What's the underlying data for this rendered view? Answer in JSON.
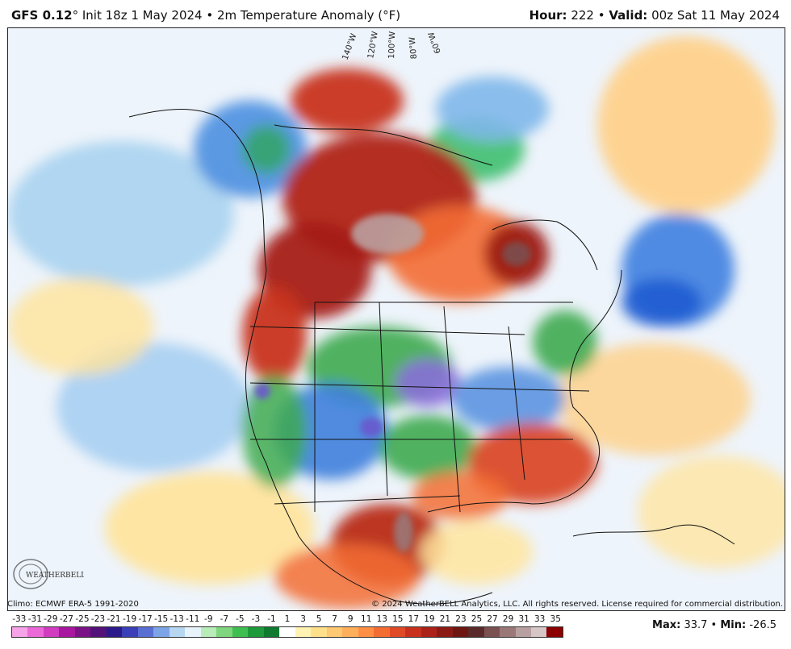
{
  "header": {
    "model": "GFS 0.12",
    "init": "° Init 18z 1 May 2024",
    "separator": " • ",
    "product": "2m Temperature Anomaly (°F)",
    "hour_label": "Hour:",
    "hour_value": "222",
    "valid_label": "Valid:",
    "valid_value": "00z Sat 11 May 2024"
  },
  "map": {
    "longitude_labels": [
      "140°W",
      "120°W",
      "100°W",
      "80°W",
      "60°W"
    ]
  },
  "footer": {
    "climo": "Climo: ECMWF ERA-5 1991-2020",
    "copyright": "© 2024 WeatherBELL Analytics, LLC. All rights reserved. License required for commercial distribution.",
    "max_label": "Max:",
    "max_value": "33.7",
    "min_label": "Min:",
    "min_value": "-26.5",
    "logo_text": "WEATHERBELL"
  },
  "legend": {
    "ticks": [
      "-33",
      "-31",
      "-29",
      "-27",
      "-25",
      "-23",
      "-21",
      "-19",
      "-17",
      "-15",
      "-13",
      "-11",
      "-9",
      "-7",
      "-5",
      "-3",
      "-1",
      "1",
      "3",
      "5",
      "7",
      "9",
      "11",
      "13",
      "15",
      "17",
      "19",
      "21",
      "23",
      "25",
      "27",
      "29",
      "31",
      "33",
      "35"
    ],
    "colors": [
      "#f7a3e8",
      "#ec6ad8",
      "#d13cc0",
      "#a8179f",
      "#7b1286",
      "#52127a",
      "#2b1a8a",
      "#3b3fb8",
      "#5a6fd3",
      "#7ea4e8",
      "#b6d6f2",
      "#e7f3fb",
      "#b8ecb8",
      "#7fd67f",
      "#3fbf4f",
      "#1e9a3a",
      "#0f7a30",
      "#ffffff",
      "#fff2b3",
      "#ffe08a",
      "#ffc873",
      "#ffaf5b",
      "#ff8f45",
      "#f36d33",
      "#e04a26",
      "#c8311e",
      "#aa2218",
      "#8b1a14",
      "#6e1712",
      "#5a2a2a",
      "#7a5050",
      "#9a7878",
      "#b9a0a0",
      "#d6c6c6",
      "#8b0000"
    ]
  }
}
